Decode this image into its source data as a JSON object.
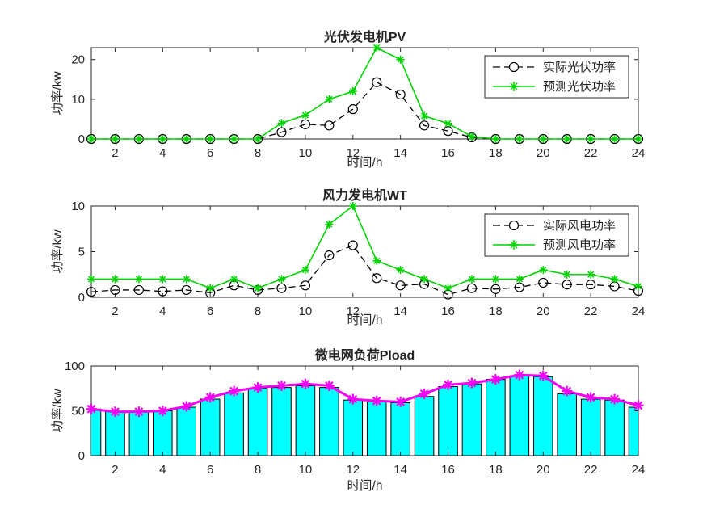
{
  "figure": {
    "background": "#ffffff",
    "axis_color": "#262626",
    "text_color": "#262626"
  },
  "chart_data": [
    {
      "id": "pv",
      "type": "line",
      "title": "光伏发电机PV",
      "xlabel": "时间/h",
      "ylabel": "功率/kw",
      "x": [
        1,
        2,
        3,
        4,
        5,
        6,
        7,
        8,
        9,
        10,
        11,
        12,
        13,
        14,
        15,
        16,
        17,
        18,
        19,
        20,
        21,
        22,
        23,
        24
      ],
      "xlim": [
        1,
        24
      ],
      "ylim": [
        0,
        23
      ],
      "xticks": [
        2,
        4,
        6,
        8,
        10,
        12,
        14,
        16,
        18,
        20,
        22,
        24
      ],
      "yticks": [
        0,
        10,
        20
      ],
      "grid": false,
      "legend_position": "upper-right",
      "series": [
        {
          "name": "实际光伏功率",
          "color": "#000000",
          "line": "dashed",
          "marker": "circle",
          "values": [
            0,
            0,
            0,
            0,
            0,
            0,
            0,
            0,
            1.7,
            3.7,
            3.4,
            7.5,
            14.3,
            11.2,
            3.4,
            2,
            0.4,
            0,
            0,
            0,
            0,
            0,
            0,
            0
          ]
        },
        {
          "name": "预测光伏功率",
          "color": "#00d300",
          "line": "solid",
          "marker": "asterisk",
          "values": [
            0,
            0,
            0,
            0,
            0,
            0,
            0,
            0,
            4,
            6,
            10,
            12,
            23,
            20,
            5.8,
            3.9,
            0.6,
            0,
            0,
            0,
            0,
            0,
            0,
            0
          ]
        }
      ]
    },
    {
      "id": "wt",
      "type": "line",
      "title": "风力发电机WT",
      "xlabel": "时间/h",
      "ylabel": "功率/kw",
      "x": [
        1,
        2,
        3,
        4,
        5,
        6,
        7,
        8,
        9,
        10,
        11,
        12,
        13,
        14,
        15,
        16,
        17,
        18,
        19,
        20,
        21,
        22,
        23,
        24
      ],
      "xlim": [
        1,
        24
      ],
      "ylim": [
        0,
        10
      ],
      "xticks": [
        2,
        4,
        6,
        8,
        10,
        12,
        14,
        16,
        18,
        20,
        22,
        24
      ],
      "yticks": [
        0,
        5,
        10
      ],
      "grid": false,
      "legend_position": "upper-right",
      "series": [
        {
          "name": "实际风电功率",
          "color": "#000000",
          "line": "dashed",
          "marker": "circle",
          "values": [
            0.6,
            0.8,
            0.8,
            0.65,
            0.8,
            0.5,
            1.3,
            0.8,
            1,
            1.3,
            4.6,
            5.7,
            2.1,
            1.3,
            1.45,
            0.3,
            1,
            0.9,
            1.1,
            1.6,
            1.4,
            1.4,
            1.2,
            0.7
          ]
        },
        {
          "name": "预测风电功率",
          "color": "#00d300",
          "line": "solid",
          "marker": "asterisk",
          "values": [
            2,
            2,
            2,
            2,
            2,
            1,
            2,
            1,
            2,
            3,
            8,
            10,
            4,
            3,
            2,
            1,
            2,
            2,
            2,
            3,
            2.5,
            2.5,
            2,
            1.2
          ]
        }
      ]
    },
    {
      "id": "pload",
      "type": "bar+line",
      "title": "微电网负荷Pload",
      "xlabel": "时间/h",
      "ylabel": "功率/kw",
      "x": [
        1,
        2,
        3,
        4,
        5,
        6,
        7,
        8,
        9,
        10,
        11,
        12,
        13,
        14,
        15,
        16,
        17,
        18,
        19,
        20,
        21,
        22,
        23,
        24
      ],
      "xlim": [
        1,
        24
      ],
      "ylim": [
        0,
        100
      ],
      "xticks": [
        2,
        4,
        6,
        8,
        10,
        12,
        14,
        16,
        18,
        20,
        22,
        24
      ],
      "yticks": [
        0,
        50,
        100
      ],
      "grid": false,
      "legend_position": "none",
      "bars": {
        "color": "#00ffff",
        "edge_color": "#000000",
        "bar_width_ratio": 0.8,
        "values": [
          52,
          49,
          49,
          50,
          54,
          63,
          70,
          75,
          76,
          78,
          76,
          62,
          60,
          59,
          66,
          77,
          80,
          85,
          89,
          88,
          69,
          63,
          62,
          54
        ]
      },
      "series": [
        {
          "color": "#f400f4",
          "line": "solid",
          "marker": "asterisk",
          "width": 3,
          "marker_size": 6.5,
          "values": [
            52,
            49,
            49,
            50,
            55,
            65,
            72,
            76,
            78,
            80,
            78,
            63,
            61,
            60,
            69,
            79,
            81,
            85,
            90,
            89,
            72,
            65,
            63,
            56
          ]
        }
      ]
    }
  ]
}
